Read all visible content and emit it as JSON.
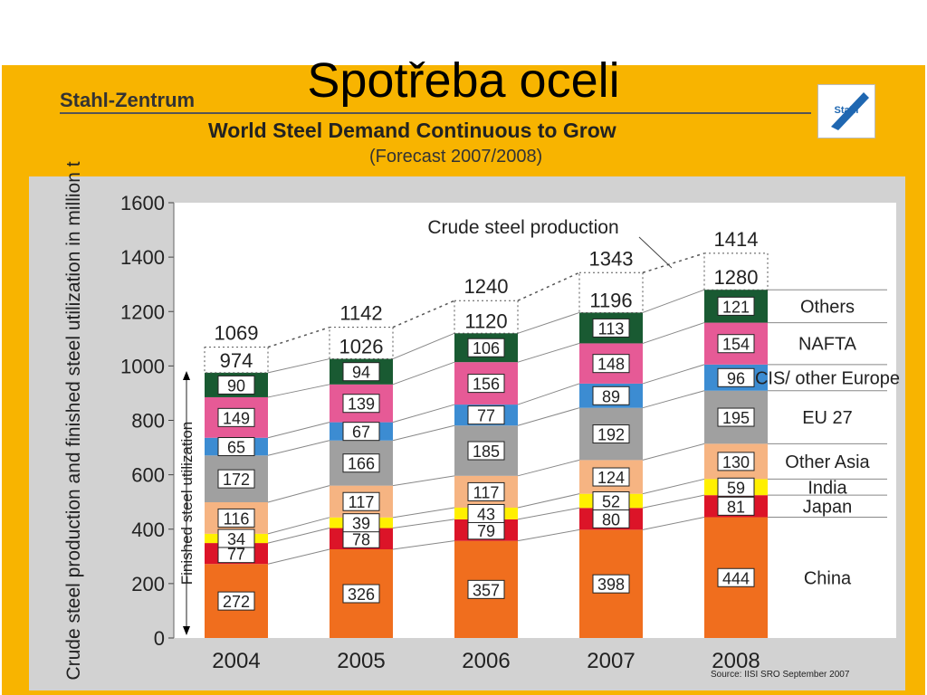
{
  "slide": {
    "title": "Spotřeba oceli"
  },
  "header": {
    "org": "Stahl-Zentrum",
    "logo_text": "Stahl"
  },
  "chart_data": {
    "type": "bar",
    "title": "World Steel Demand Continuous to Grow",
    "subtitle": "(Forecast 2007/2008)",
    "ylabel": "Crude steel production and finished steel utilization in million t",
    "ylim": [
      0,
      1600
    ],
    "yticks": [
      "0",
      "200",
      "400",
      "600",
      "800",
      "1000",
      "1200",
      "1400",
      "1600"
    ],
    "categories": [
      "2004",
      "2005",
      "2006",
      "2007",
      "2008"
    ],
    "series": [
      {
        "name": "China",
        "values": [
          272,
          326,
          357,
          398,
          444
        ],
        "color": "#f06e1e"
      },
      {
        "name": "Japan",
        "values": [
          77,
          78,
          79,
          80,
          81
        ],
        "color": "#dc1428"
      },
      {
        "name": "India",
        "values": [
          34,
          39,
          43,
          52,
          59
        ],
        "color": "#fff000"
      },
      {
        "name": "Other Asia",
        "values": [
          116,
          117,
          117,
          124,
          130
        ],
        "color": "#f6b482"
      },
      {
        "name": "EU 27",
        "values": [
          172,
          166,
          185,
          192,
          195
        ],
        "color": "#a0a0a0"
      },
      {
        "name": "CIS/ other Europe",
        "values": [
          65,
          67,
          77,
          89,
          96
        ],
        "color": "#3c8cd2"
      },
      {
        "name": "NAFTA",
        "values": [
          149,
          139,
          156,
          148,
          154
        ],
        "color": "#e65a96"
      },
      {
        "name": "Others",
        "values": [
          90,
          94,
          106,
          113,
          121
        ],
        "color": "#195a32"
      }
    ],
    "finished_total": [
      974,
      1026,
      1120,
      1196,
      1280
    ],
    "crude_total": [
      1069,
      1142,
      1240,
      1343,
      1414
    ],
    "annotations": {
      "crude_label": "Crude steel production",
      "finished_label": "Finished steel utilization"
    },
    "source": "Source: IISI SRO September 2007"
  }
}
